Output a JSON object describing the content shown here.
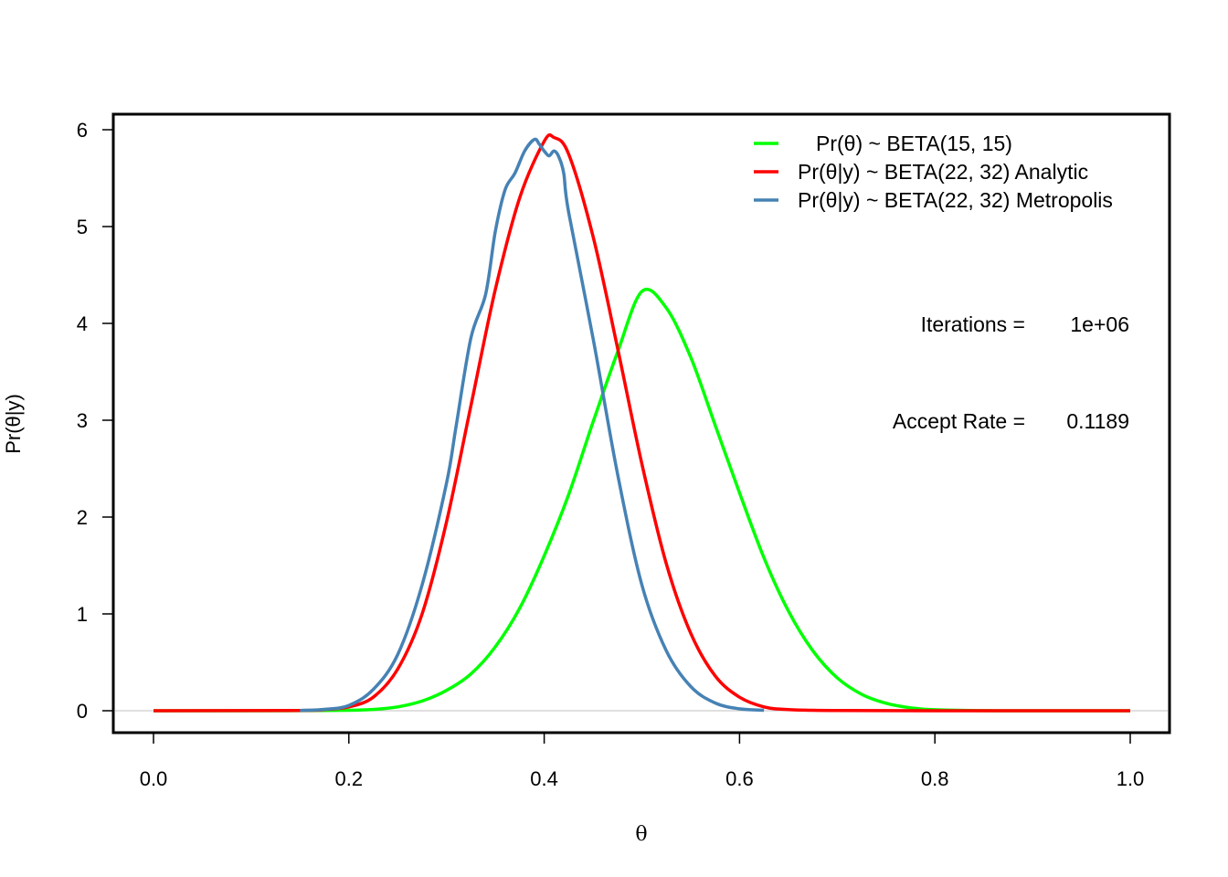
{
  "chart_data": {
    "type": "line",
    "title": "",
    "xlabel": "θ",
    "ylabel": "Pr(θ|y)",
    "xlim": [
      0,
      1
    ],
    "ylim": [
      0,
      6
    ],
    "x_ticks": [
      "0.0",
      "0.2",
      "0.4",
      "0.6",
      "0.8",
      "1.0"
    ],
    "y_ticks": [
      "0",
      "1",
      "2",
      "3",
      "4",
      "5",
      "6"
    ],
    "grid": false,
    "baseline": {
      "y": 0,
      "color": "#c0c0c0"
    },
    "legend": {
      "placement": "top-right"
    },
    "series": [
      {
        "name": "Pr(θ) ~ BETA(15, 15)",
        "color": "#00ff00",
        "x": [
          0.0,
          0.1,
          0.15,
          0.2,
          0.225,
          0.25,
          0.275,
          0.3,
          0.325,
          0.35,
          0.375,
          0.4,
          0.425,
          0.45,
          0.475,
          0.5,
          0.525,
          0.55,
          0.575,
          0.6,
          0.625,
          0.65,
          0.675,
          0.7,
          0.725,
          0.75,
          0.775,
          0.8,
          0.85,
          0.9,
          1.0
        ],
        "y": [
          0.0,
          0.0,
          0.001,
          0.005,
          0.013,
          0.04,
          0.1,
          0.21,
          0.38,
          0.66,
          1.06,
          1.6,
          2.23,
          2.98,
          3.7,
          4.33,
          4.16,
          3.65,
          2.95,
          2.25,
          1.58,
          1.03,
          0.62,
          0.34,
          0.17,
          0.077,
          0.03,
          0.01,
          0.001,
          0.0,
          0.0
        ]
      },
      {
        "name": "Pr(θ|y) ~ BETA(22, 32) Analytic",
        "color": "#ff0000",
        "x": [
          0.0,
          0.15,
          0.175,
          0.2,
          0.225,
          0.25,
          0.275,
          0.3,
          0.325,
          0.35,
          0.375,
          0.4,
          0.41,
          0.425,
          0.45,
          0.475,
          0.5,
          0.525,
          0.55,
          0.575,
          0.6,
          0.625,
          0.65,
          0.7,
          0.8,
          1.0
        ],
        "y": [
          0.0,
          0.003,
          0.012,
          0.04,
          0.14,
          0.43,
          1.0,
          1.95,
          3.15,
          4.35,
          5.3,
          5.88,
          5.92,
          5.75,
          4.9,
          3.75,
          2.55,
          1.52,
          0.8,
          0.36,
          0.14,
          0.04,
          0.012,
          0.002,
          0.0,
          0.0
        ]
      },
      {
        "name": "Pr(θ|y) ~ BETA(22, 32) Metropolis",
        "color": "#4682b4",
        "x": [
          0.15,
          0.175,
          0.2,
          0.225,
          0.25,
          0.275,
          0.3,
          0.31,
          0.325,
          0.34,
          0.35,
          0.36,
          0.37,
          0.38,
          0.39,
          0.395,
          0.4,
          0.405,
          0.41,
          0.415,
          0.42,
          0.425,
          0.45,
          0.475,
          0.5,
          0.525,
          0.55,
          0.575,
          0.6,
          0.625
        ],
        "y": [
          0.003,
          0.014,
          0.055,
          0.22,
          0.58,
          1.3,
          2.35,
          2.95,
          3.85,
          4.3,
          4.95,
          5.38,
          5.55,
          5.78,
          5.9,
          5.85,
          5.78,
          5.73,
          5.78,
          5.72,
          5.55,
          5.15,
          3.85,
          2.45,
          1.3,
          0.62,
          0.25,
          0.08,
          0.02,
          0.005
        ]
      }
    ],
    "annotations": [
      {
        "label": "Iterations =",
        "value": "1e+06"
      },
      {
        "label": "Accept Rate =",
        "value": "0.1189"
      }
    ]
  }
}
